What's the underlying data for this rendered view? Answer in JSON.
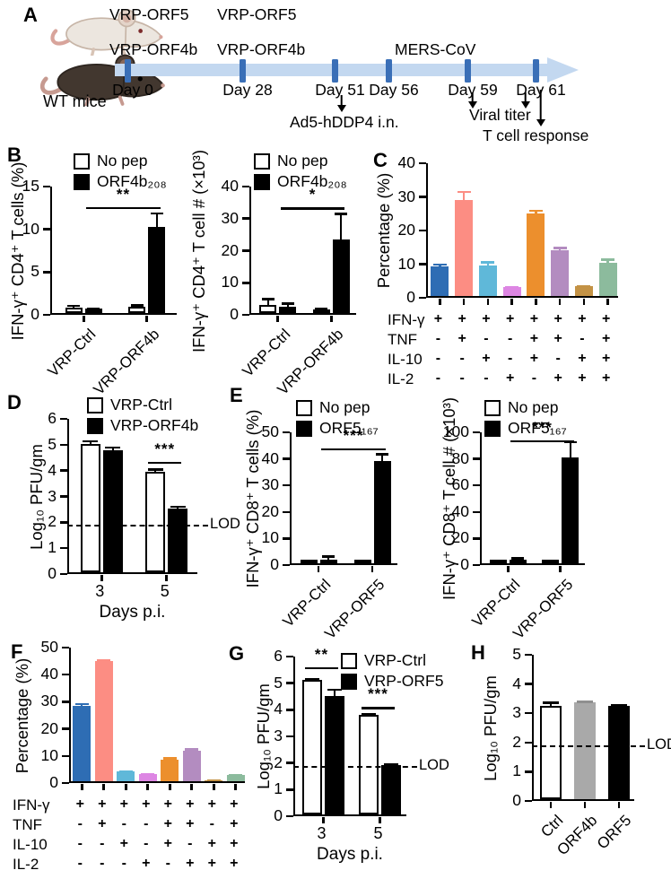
{
  "panels": {
    "A": "A",
    "B": "B",
    "C": "C",
    "D": "D",
    "E": "E",
    "F": "F",
    "G": "G",
    "H": "H"
  },
  "panel_a": {
    "row1": [
      "VRP-ORF5",
      "VRP-ORF5"
    ],
    "row2": [
      "VRP-ORF4b",
      "VRP-ORF4b",
      "MERS-CoV"
    ],
    "days": [
      "Day 0",
      "Day 28",
      "Day 51",
      "Day 56",
      "Day 59",
      "Day 61"
    ],
    "ann_ad5": "Ad5-hDDP4 i.n.",
    "ann_titer": "Viral titer",
    "ann_tcell": "T cell response",
    "wt_label": "WT mice",
    "timeline_color": "#c3d8f0",
    "tick_color": "#3a6fb7"
  },
  "chart_data": [
    {
      "id": "B1",
      "type": "bar",
      "ylabel": "IFN-γ⁺ CD4⁺ T cells (%)",
      "ymax": 15,
      "yticks": [
        0,
        5,
        10,
        15
      ],
      "categories": [
        "VRP-Ctrl",
        "VRP-ORF4b"
      ],
      "series": [
        {
          "name": "No pep",
          "fill": "#ffffff",
          "values": [
            0.6,
            0.7
          ],
          "errors": [
            0.35,
            0.3
          ]
        },
        {
          "name": "ORF4b₂₀₈",
          "fill": "#000000",
          "values": [
            0.5,
            10.1
          ],
          "errors": [
            0.15,
            1.7
          ]
        }
      ],
      "sig": [
        {
          "label": "**",
          "from": [
            0,
            1
          ],
          "to": [
            1,
            1
          ],
          "y": 12.6
        }
      ]
    },
    {
      "id": "B2",
      "type": "bar",
      "ylabel": "IFN-γ⁺ CD4⁺ T cell # (×10³)",
      "ymax": 40,
      "yticks": [
        0,
        10,
        20,
        30,
        40
      ],
      "categories": [
        "VRP-Ctrl",
        "VRP-ORF4b"
      ],
      "series": [
        {
          "name": "No pep",
          "fill": "#ffffff",
          "values": [
            2.5,
            1.0
          ],
          "errors": [
            2.2,
            0.6
          ]
        },
        {
          "name": "ORF4b₂₀₈",
          "fill": "#000000",
          "values": [
            2.0,
            23.0
          ],
          "errors": [
            1.3,
            8.2
          ]
        }
      ],
      "sig": [
        {
          "label": "*",
          "from": [
            0,
            1
          ],
          "to": [
            1,
            1
          ],
          "y": 33.5
        }
      ]
    },
    {
      "id": "C",
      "type": "bar",
      "ylabel": "Percentage (%)",
      "ymax": 40,
      "yticks": [
        0,
        10,
        20,
        30,
        40
      ],
      "values": [
        8.8,
        28.5,
        9.0,
        2.6,
        24.5,
        13.7,
        2.9,
        9.8
      ],
      "errors": [
        0.9,
        2.8,
        1.3,
        0.4,
        1.2,
        0.9,
        0.3,
        1.3
      ],
      "bar_colors": [
        "#2e6db4",
        "#fc8d83",
        "#5fb8d9",
        "#dd86e3",
        "#ec8f2d",
        "#b38cc0",
        "#c39245",
        "#8cbb9d"
      ],
      "matrix": {
        "rows": [
          "IFN-γ",
          "TNF",
          "IL-10",
          "IL-2"
        ],
        "signs": [
          [
            "+",
            "+",
            "+",
            "+",
            "+",
            "+",
            "+",
            "+"
          ],
          [
            "-",
            "+",
            "-",
            "-",
            "+",
            "+",
            "-",
            "+"
          ],
          [
            "-",
            "-",
            "+",
            "-",
            "+",
            "-",
            "+",
            "+"
          ],
          [
            "-",
            "-",
            "-",
            "+",
            "-",
            "+",
            "+",
            "+"
          ]
        ]
      }
    },
    {
      "id": "D",
      "type": "bar",
      "ylabel": "Log₁₀ PFU/gm",
      "xlabel": "Days p.i.",
      "ymax": 6,
      "yticks": [
        0,
        1,
        2,
        3,
        4,
        5,
        6
      ],
      "categories": [
        "3",
        "5"
      ],
      "series": [
        {
          "name": "VRP-Ctrl",
          "fill": "#ffffff",
          "values": [
            4.95,
            3.9
          ],
          "errors": [
            0.15,
            0.12
          ]
        },
        {
          "name": "VRP-ORF4b",
          "fill": "#000000",
          "values": [
            4.7,
            2.45
          ],
          "errors": [
            0.17,
            0.12
          ]
        }
      ],
      "lod": {
        "value": 1.9,
        "label": "LOD"
      },
      "sig": [
        {
          "label": "***",
          "from": [
            1,
            0
          ],
          "to": [
            1,
            1
          ],
          "y": 4.35
        }
      ]
    },
    {
      "id": "E1",
      "type": "bar",
      "ylabel": "IFN-γ⁺ CD8⁺ T cells (%)",
      "ymax": 50,
      "yticks": [
        0,
        10,
        20,
        30,
        40,
        50
      ],
      "categories": [
        "VRP-Ctrl",
        "VRP-ORF5"
      ],
      "series": [
        {
          "name": "No pep",
          "fill": "#ffffff",
          "values": [
            0.25,
            0.25
          ],
          "errors": [
            0.1,
            0.1
          ]
        },
        {
          "name": "ORF5₁₆₇",
          "fill": "#000000",
          "values": [
            1.5,
            38.5
          ],
          "errors": [
            1.4,
            3.0
          ]
        }
      ],
      "sig": [
        {
          "label": "***",
          "from": [
            0,
            1
          ],
          "to": [
            1,
            1
          ],
          "y": 44
        }
      ]
    },
    {
      "id": "E2",
      "type": "bar",
      "ylabel": "IFN-γ⁺ CD8⁺ T cell # (×10³)",
      "ymax": 100,
      "yticks": [
        0,
        20,
        40,
        60,
        80,
        100
      ],
      "categories": [
        "VRP-Ctrl",
        "VRP-ORF5"
      ],
      "series": [
        {
          "name": "No pep",
          "fill": "#ffffff",
          "values": [
            0.3,
            0.5
          ],
          "errors": [
            0.1,
            0.1
          ]
        },
        {
          "name": "ORF5₁₆₇",
          "fill": "#000000",
          "values": [
            2.0,
            80.0
          ],
          "errors": [
            2.6,
            12.0
          ]
        }
      ],
      "sig": [
        {
          "label": "***",
          "from": [
            0,
            1
          ],
          "to": [
            1,
            1
          ],
          "y": 94
        }
      ]
    },
    {
      "id": "F",
      "type": "bar",
      "ylabel": "Percentage (%)",
      "ymax": 50,
      "yticks": [
        0,
        10,
        20,
        30,
        40,
        50
      ],
      "values": [
        27.8,
        44.3,
        3.5,
        2.6,
        7.9,
        11.2,
        0.4,
        2.2
      ],
      "errors": [
        1.0,
        0.7,
        0.4,
        0.3,
        0.9,
        1.0,
        0.2,
        0.3
      ],
      "bar_colors": [
        "#2e6db4",
        "#fc8d83",
        "#5fb8d9",
        "#dd86e3",
        "#ec8f2d",
        "#b38cc0",
        "#c39245",
        "#8cbb9d"
      ],
      "matrix": {
        "rows": [
          "IFN-γ",
          "TNF",
          "IL-10",
          "IL-2"
        ],
        "signs": [
          [
            "+",
            "+",
            "+",
            "+",
            "+",
            "+",
            "+",
            "+"
          ],
          [
            "-",
            "+",
            "-",
            "-",
            "+",
            "+",
            "-",
            "+"
          ],
          [
            "-",
            "-",
            "+",
            "-",
            "+",
            "-",
            "+",
            "+"
          ],
          [
            "-",
            "-",
            "-",
            "+",
            "-",
            "+",
            "+",
            "+"
          ]
        ]
      }
    },
    {
      "id": "G",
      "type": "bar",
      "ylabel": "Log₁₀ PFU/gm",
      "xlabel": "Days p.i.",
      "ymax": 6,
      "yticks": [
        0,
        1,
        2,
        3,
        4,
        5,
        6
      ],
      "categories": [
        "3",
        "5"
      ],
      "series": [
        {
          "name": "VRP-Ctrl",
          "fill": "#ffffff",
          "values": [
            5.05,
            3.75
          ],
          "errors": [
            0.08,
            0.06
          ]
        },
        {
          "name": "VRP-ORF5",
          "fill": "#000000",
          "values": [
            4.45,
            1.85
          ],
          "errors": [
            0.27,
            0.07
          ]
        }
      ],
      "lod": {
        "value": 1.9,
        "label": "LOD"
      },
      "sig": [
        {
          "label": "**",
          "from": [
            0,
            0
          ],
          "to": [
            0,
            1
          ],
          "y": 5.6
        },
        {
          "label": "***",
          "from": [
            1,
            0
          ],
          "to": [
            1,
            1
          ],
          "y": 4.1
        }
      ]
    },
    {
      "id": "H",
      "type": "bar",
      "ylabel": "Log₁₀ PFU/gm",
      "ymax": 5,
      "yticks": [
        0,
        1,
        2,
        3,
        4,
        5
      ],
      "categories": [
        "Ctrl",
        "ORF4b",
        "ORF5"
      ],
      "values": [
        3.2,
        3.3,
        3.2
      ],
      "errors": [
        0.13,
        0.07,
        0.06
      ],
      "bar_colors": [
        "#ffffff",
        "#a9a9a9",
        "#000000"
      ],
      "err_colors": [
        "#000000",
        "#8f8f8f",
        "#000000"
      ],
      "lod": {
        "value": 1.9,
        "label": "LOD"
      }
    }
  ]
}
